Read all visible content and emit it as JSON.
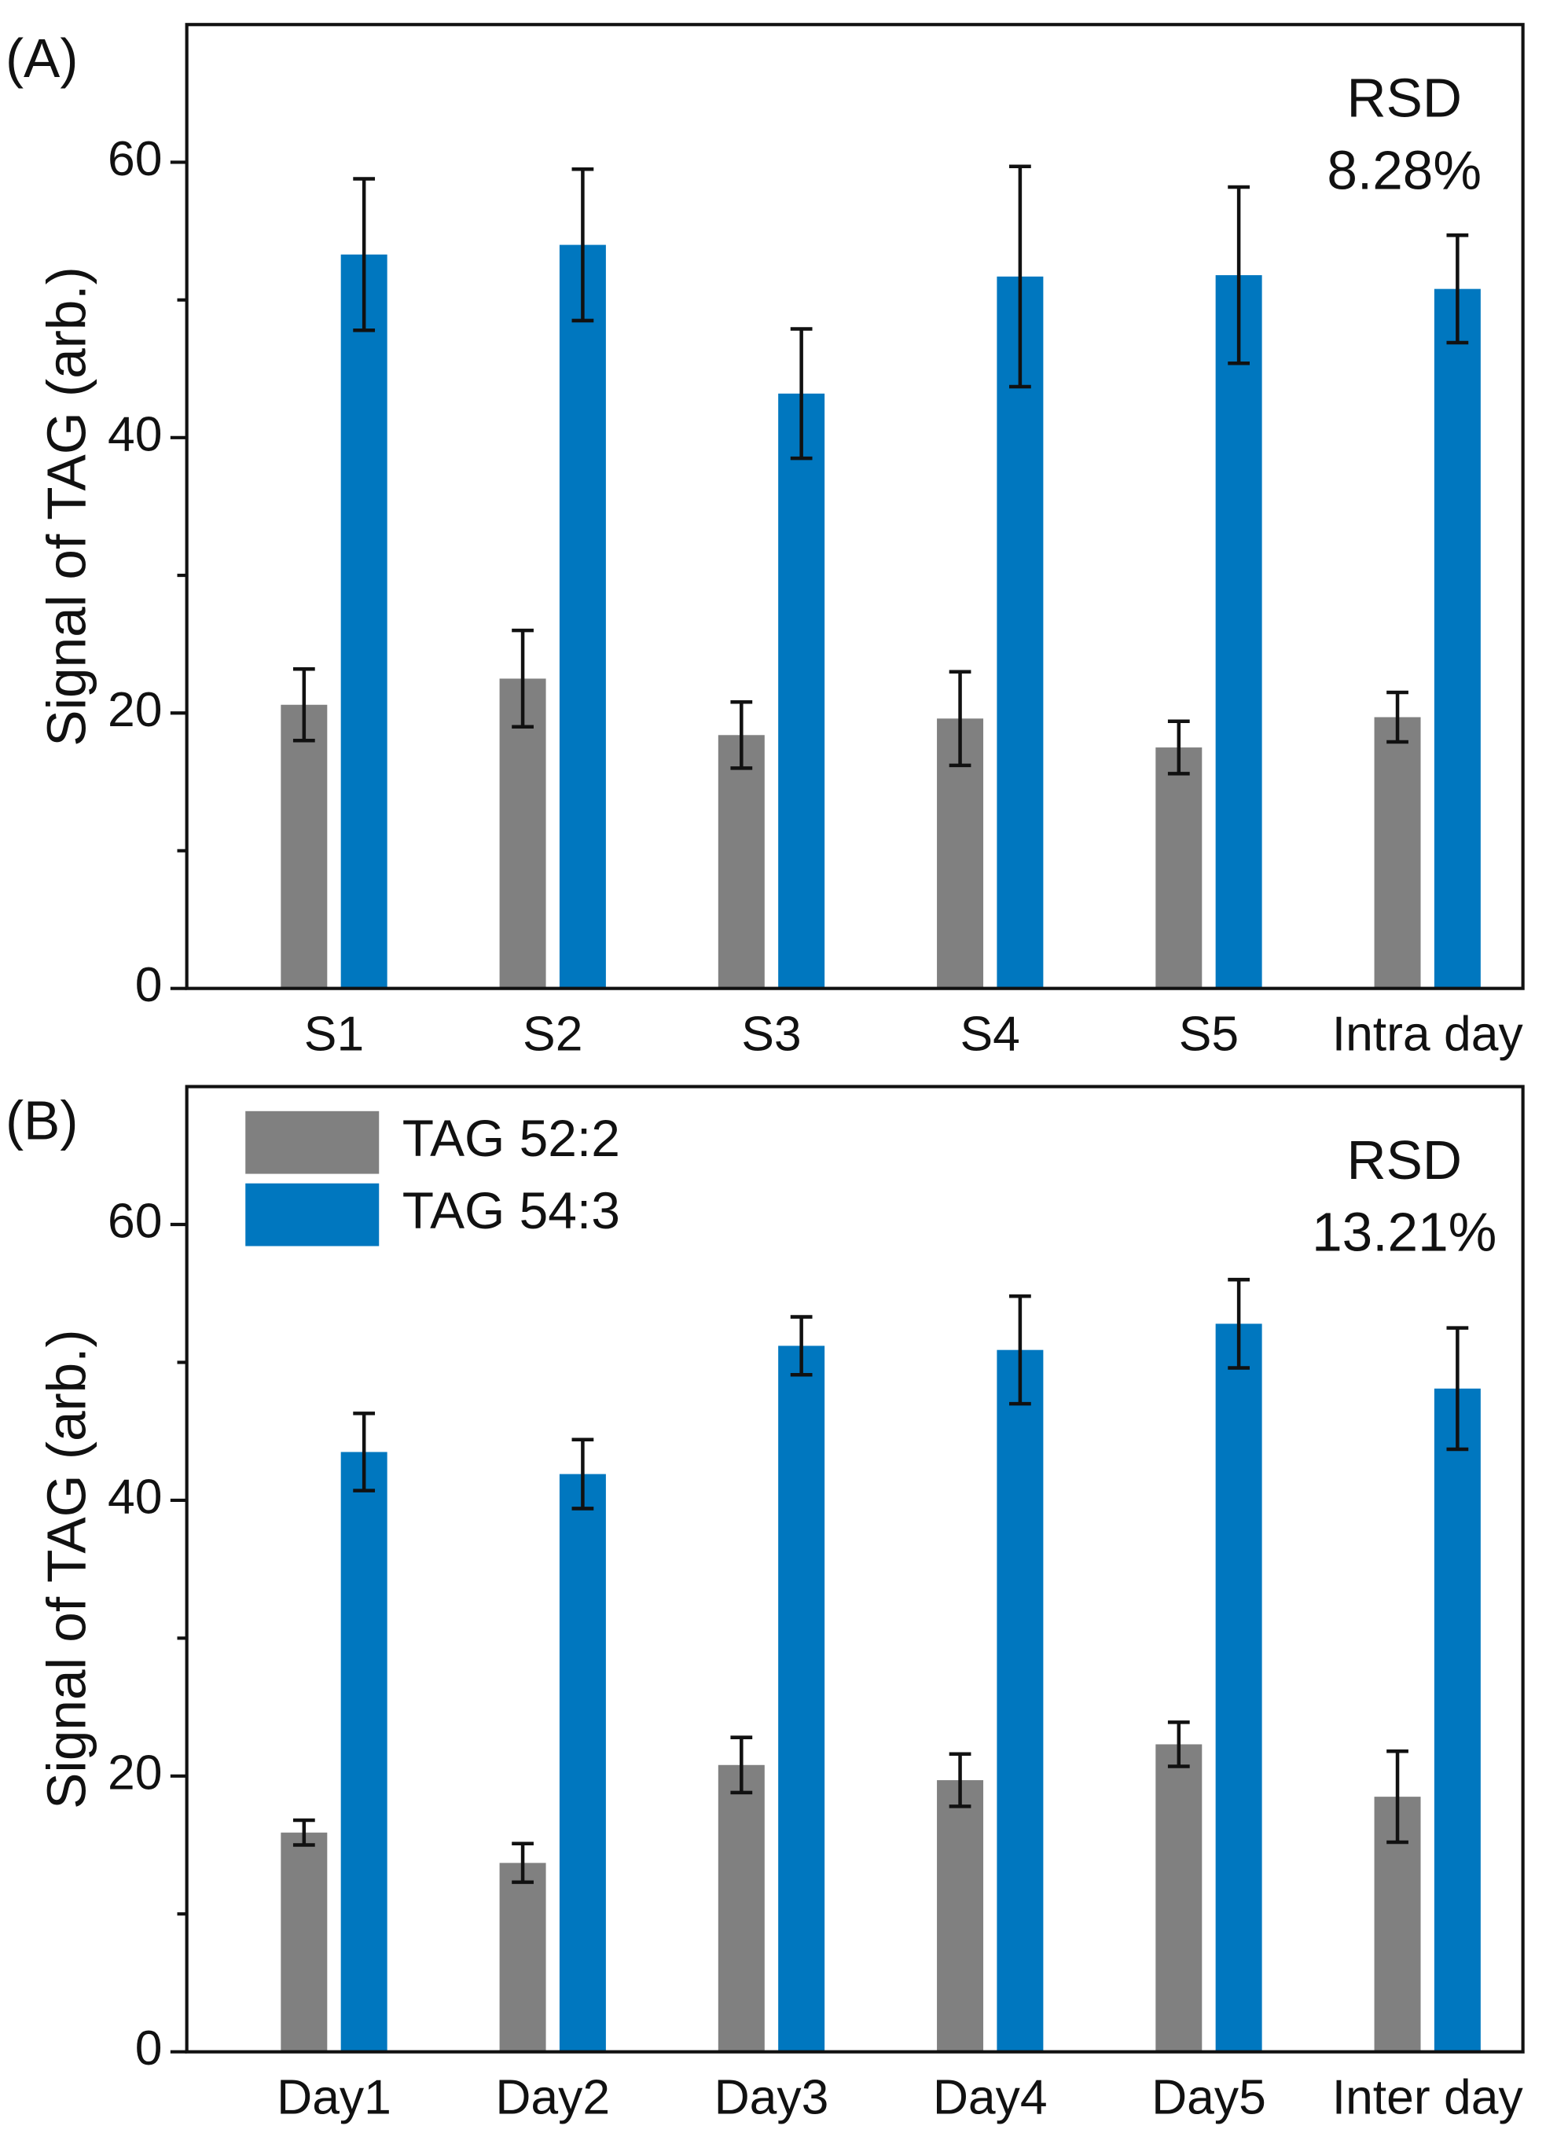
{
  "chart_data": [
    {
      "type": "bar",
      "panel_label": "(A)",
      "y_label": "Signal of TAG (arb.)",
      "annotations": [
        "RSD",
        "8.28%"
      ],
      "categories": [
        "S1",
        "S2",
        "S3",
        "S4",
        "S5",
        "Intra day"
      ],
      "series": [
        {
          "color": "#808080",
          "values": [
            20.6,
            22.5,
            18.4,
            19.6,
            17.5,
            19.7
          ],
          "errors": [
            2.6,
            3.5,
            2.4,
            3.4,
            1.9,
            1.8
          ]
        },
        {
          "color": "#0077bf",
          "values": [
            53.3,
            54.0,
            43.2,
            51.7,
            51.8,
            50.8
          ],
          "errors": [
            5.5,
            5.5,
            4.7,
            8.0,
            6.4,
            3.9
          ]
        }
      ],
      "ylim": [
        0,
        70
      ],
      "yticks": [
        0,
        20,
        40,
        60
      ],
      "yminor_ticks": [
        10,
        30,
        50
      ]
    },
    {
      "type": "bar",
      "panel_label": "(B)",
      "y_label": "Signal of TAG (arb.)",
      "annotations": [
        "RSD",
        "13.21%"
      ],
      "categories": [
        "Day1",
        "Day2",
        "Day3",
        "Day4",
        "Day5",
        "Inter day"
      ],
      "series": [
        {
          "name": "TAG 52:2",
          "color": "#808080",
          "values": [
            15.9,
            13.7,
            20.8,
            19.7,
            22.3,
            18.5
          ],
          "errors": [
            0.9,
            1.4,
            2.0,
            1.9,
            1.6,
            3.3
          ]
        },
        {
          "name": "TAG 54:3",
          "color": "#0077bf",
          "values": [
            43.5,
            41.9,
            51.2,
            50.9,
            52.8,
            48.1
          ],
          "errors": [
            2.8,
            2.5,
            2.1,
            3.9,
            3.2,
            4.4
          ]
        }
      ],
      "ylim": [
        0,
        70
      ],
      "yticks": [
        0,
        20,
        40,
        60
      ],
      "yminor_ticks": [
        10,
        30,
        50
      ],
      "legend": "upper left"
    }
  ]
}
